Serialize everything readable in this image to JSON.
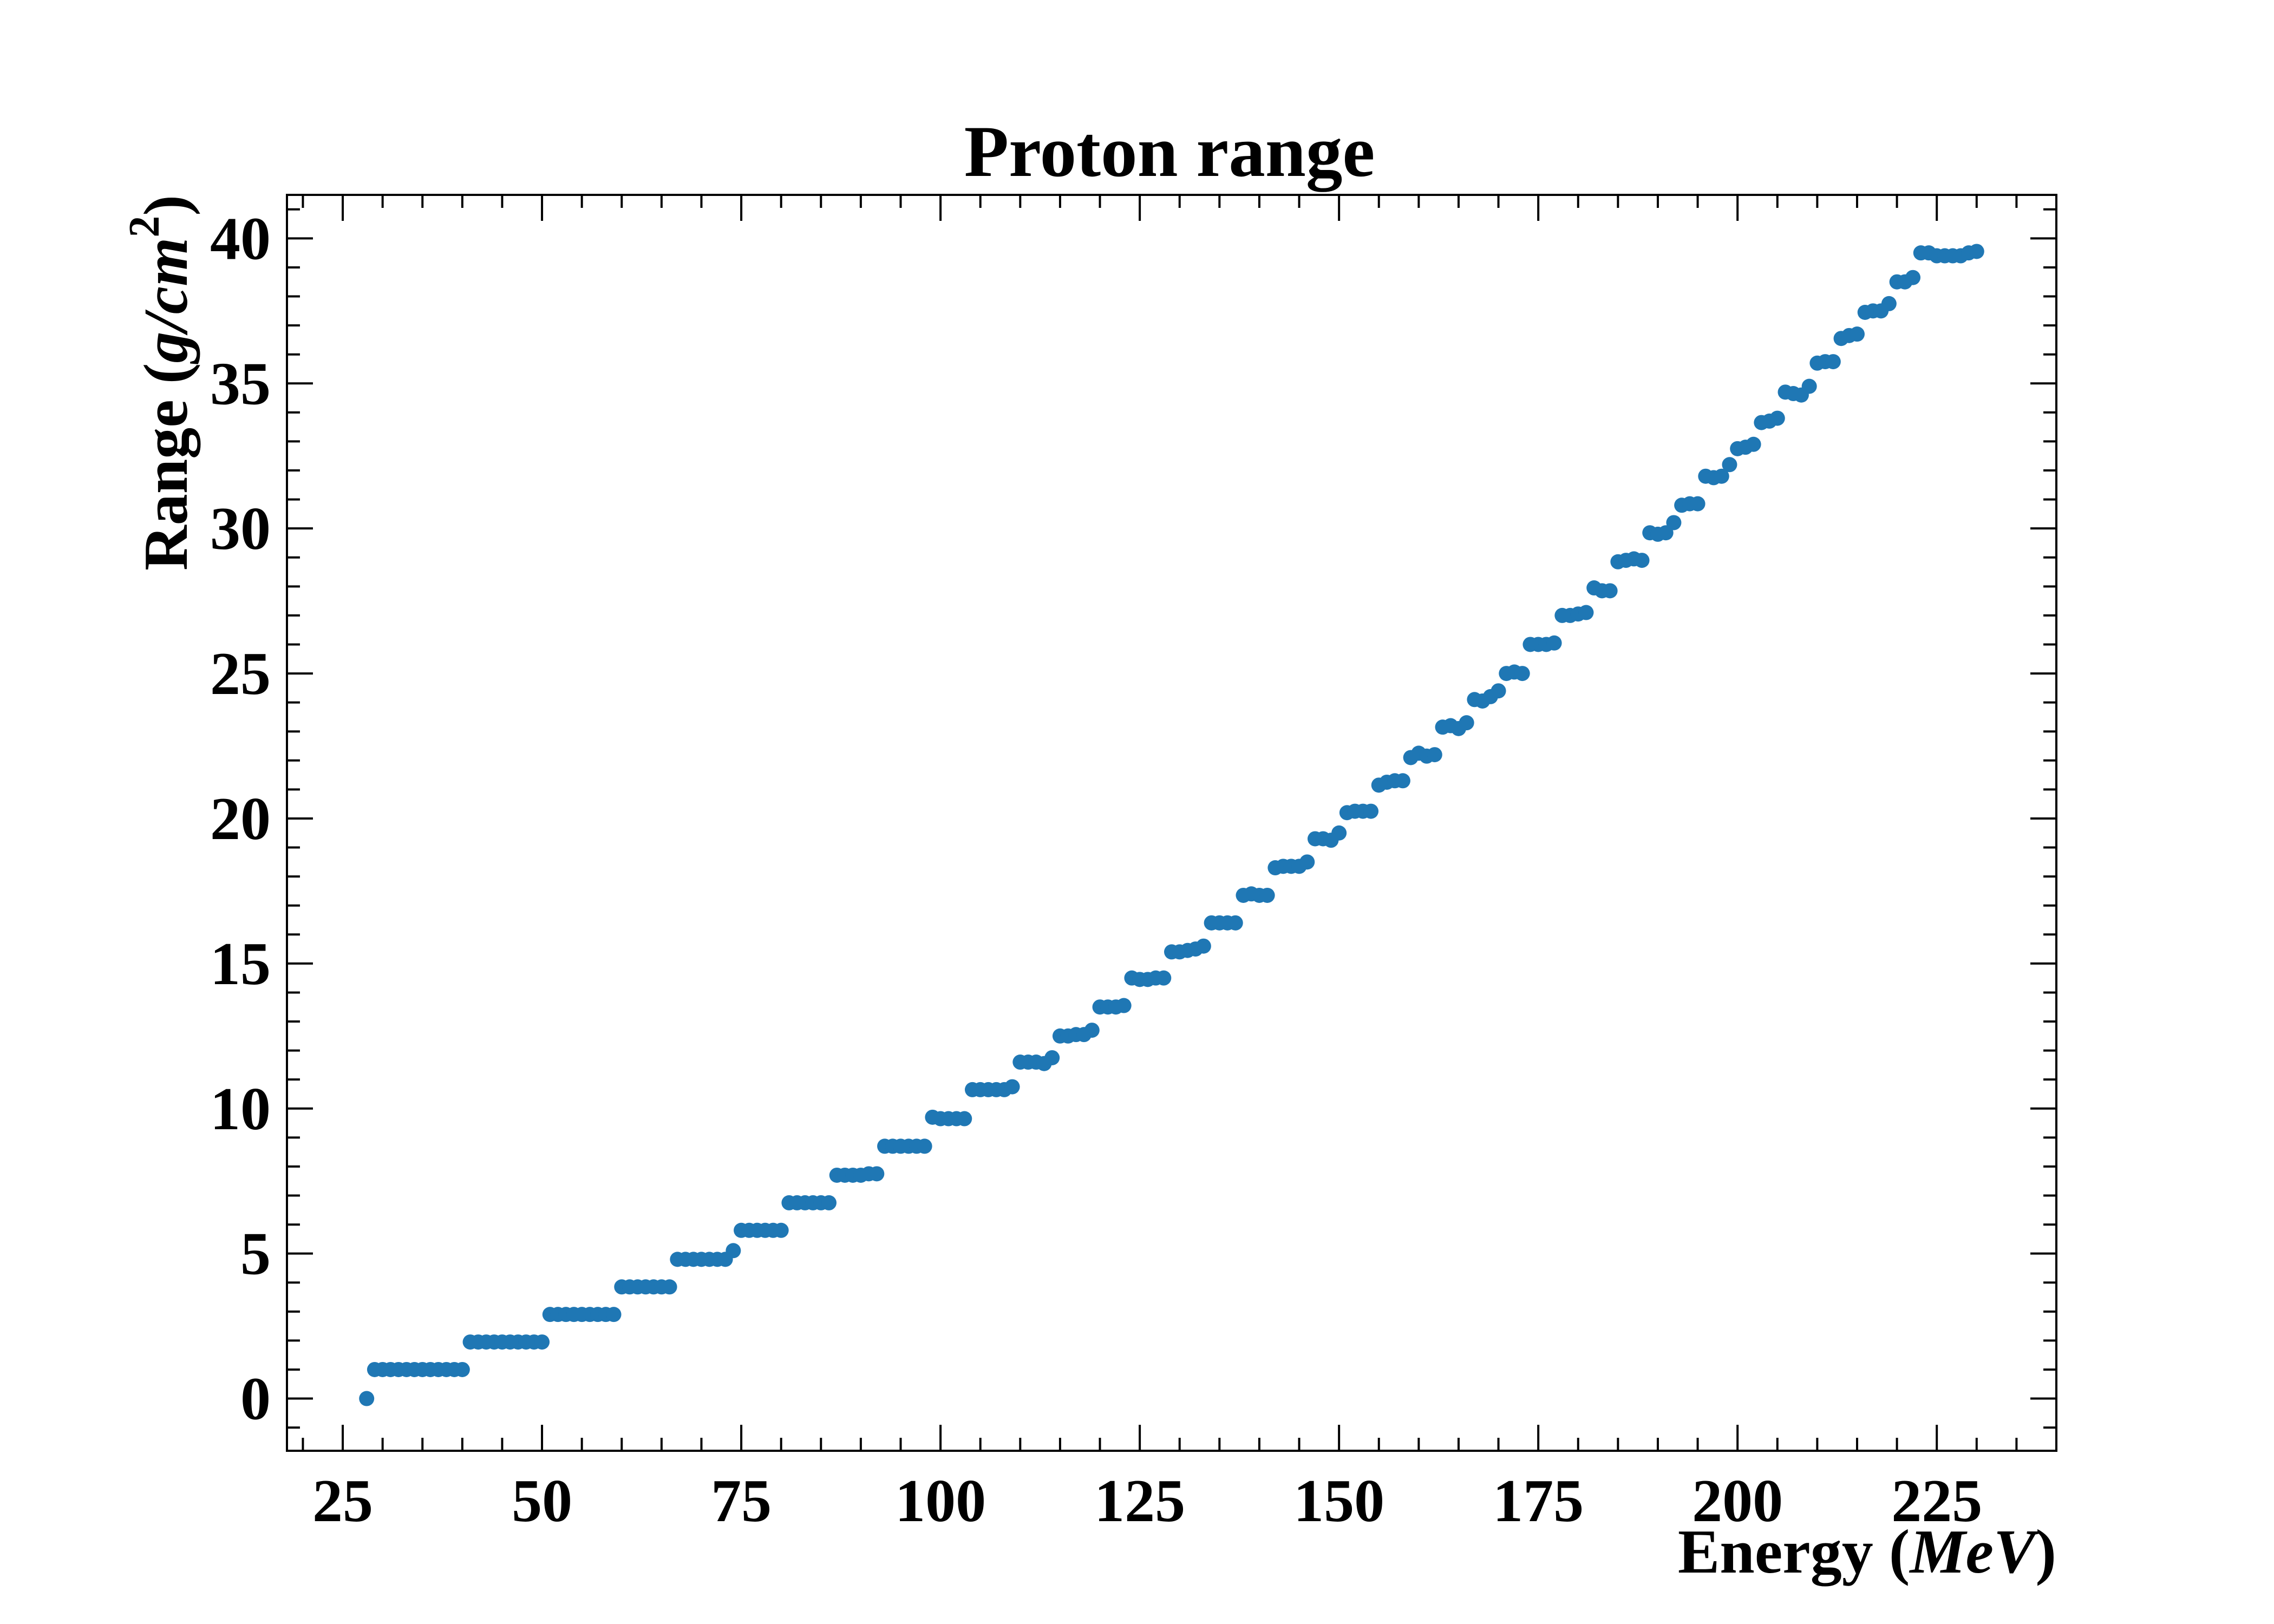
{
  "chart_data": {
    "type": "scatter",
    "title": "Proton range",
    "xlabel": {
      "text": "Energy",
      "unit": "MeV"
    },
    "ylabel": {
      "text": "Range",
      "unit": "g/cm",
      "unit_power": "2"
    },
    "xlim": [
      18,
      240
    ],
    "ylim": [
      -1.8,
      41.5
    ],
    "xticks": [
      25,
      50,
      75,
      100,
      125,
      150,
      175,
      200,
      225
    ],
    "yticks": [
      0,
      5,
      10,
      15,
      20,
      25,
      30,
      35,
      40
    ],
    "x_minor_step": 5,
    "y_minor_step": 1,
    "grid": false,
    "legend": "none",
    "marker_color": "#1f77b4",
    "series": [
      {
        "points": [
          [
            28,
            0.0
          ],
          [
            29,
            1.0
          ],
          [
            30,
            1.0
          ],
          [
            31,
            1.0
          ],
          [
            32,
            1.0
          ],
          [
            33,
            1.0
          ],
          [
            34,
            1.0
          ],
          [
            35,
            1.0
          ],
          [
            36,
            1.0
          ],
          [
            37,
            1.0
          ],
          [
            38,
            1.0
          ],
          [
            39,
            1.0
          ],
          [
            40,
            1.0
          ],
          [
            41,
            1.95
          ],
          [
            42,
            1.95
          ],
          [
            43,
            1.95
          ],
          [
            44,
            1.95
          ],
          [
            45,
            1.95
          ],
          [
            46,
            1.95
          ],
          [
            47,
            1.95
          ],
          [
            48,
            1.95
          ],
          [
            49,
            1.95
          ],
          [
            50,
            1.95
          ],
          [
            51,
            2.9
          ],
          [
            52,
            2.9
          ],
          [
            53,
            2.9
          ],
          [
            54,
            2.9
          ],
          [
            55,
            2.9
          ],
          [
            56,
            2.9
          ],
          [
            57,
            2.9
          ],
          [
            58,
            2.9
          ],
          [
            59,
            2.9
          ],
          [
            60,
            3.85
          ],
          [
            61,
            3.85
          ],
          [
            62,
            3.85
          ],
          [
            63,
            3.85
          ],
          [
            64,
            3.85
          ],
          [
            65,
            3.85
          ],
          [
            66,
            3.85
          ],
          [
            67,
            4.8
          ],
          [
            68,
            4.8
          ],
          [
            69,
            4.8
          ],
          [
            70,
            4.8
          ],
          [
            71,
            4.8
          ],
          [
            72,
            4.8
          ],
          [
            73,
            4.8
          ],
          [
            74,
            5.1
          ],
          [
            75,
            5.8
          ],
          [
            76,
            5.8
          ],
          [
            77,
            5.8
          ],
          [
            78,
            5.8
          ],
          [
            79,
            5.8
          ],
          [
            80,
            5.8
          ],
          [
            81,
            6.75
          ],
          [
            82,
            6.75
          ],
          [
            83,
            6.75
          ],
          [
            84,
            6.75
          ],
          [
            85,
            6.75
          ],
          [
            86,
            6.75
          ],
          [
            87,
            7.7
          ],
          [
            88,
            7.7
          ],
          [
            89,
            7.7
          ],
          [
            90,
            7.7
          ],
          [
            91,
            7.75
          ],
          [
            92,
            7.75
          ],
          [
            93,
            8.7
          ],
          [
            94,
            8.7
          ],
          [
            95,
            8.7
          ],
          [
            96,
            8.7
          ],
          [
            97,
            8.7
          ],
          [
            98,
            8.7
          ],
          [
            99,
            9.7
          ],
          [
            100,
            9.65
          ],
          [
            101,
            9.65
          ],
          [
            102,
            9.65
          ],
          [
            103,
            9.65
          ],
          [
            104,
            10.65
          ],
          [
            105,
            10.65
          ],
          [
            106,
            10.65
          ],
          [
            107,
            10.65
          ],
          [
            108,
            10.65
          ],
          [
            109,
            10.75
          ],
          [
            110,
            11.6
          ],
          [
            111,
            11.6
          ],
          [
            112,
            11.6
          ],
          [
            113,
            11.55
          ],
          [
            114,
            11.75
          ],
          [
            115,
            12.5
          ],
          [
            116,
            12.5
          ],
          [
            117,
            12.55
          ],
          [
            118,
            12.55
          ],
          [
            119,
            12.7
          ],
          [
            120,
            13.5
          ],
          [
            121,
            13.5
          ],
          [
            122,
            13.5
          ],
          [
            123,
            13.55
          ],
          [
            124,
            14.5
          ],
          [
            125,
            14.45
          ],
          [
            126,
            14.45
          ],
          [
            127,
            14.5
          ],
          [
            128,
            14.5
          ],
          [
            129,
            15.4
          ],
          [
            130,
            15.4
          ],
          [
            131,
            15.45
          ],
          [
            132,
            15.5
          ],
          [
            133,
            15.6
          ],
          [
            134,
            16.4
          ],
          [
            135,
            16.4
          ],
          [
            136,
            16.4
          ],
          [
            137,
            16.4
          ],
          [
            138,
            17.35
          ],
          [
            139,
            17.4
          ],
          [
            140,
            17.35
          ],
          [
            141,
            17.35
          ],
          [
            142,
            18.3
          ],
          [
            143,
            18.35
          ],
          [
            144,
            18.35
          ],
          [
            145,
            18.35
          ],
          [
            146,
            18.5
          ],
          [
            147,
            19.3
          ],
          [
            148,
            19.3
          ],
          [
            149,
            19.25
          ],
          [
            150,
            19.5
          ],
          [
            151,
            20.2
          ],
          [
            152,
            20.25
          ],
          [
            153,
            20.25
          ],
          [
            154,
            20.25
          ],
          [
            155,
            21.15
          ],
          [
            156,
            21.25
          ],
          [
            157,
            21.3
          ],
          [
            158,
            21.3
          ],
          [
            159,
            22.1
          ],
          [
            160,
            22.25
          ],
          [
            161,
            22.15
          ],
          [
            162,
            22.2
          ],
          [
            163,
            23.15
          ],
          [
            164,
            23.2
          ],
          [
            165,
            23.1
          ],
          [
            166,
            23.3
          ],
          [
            167,
            24.1
          ],
          [
            168,
            24.05
          ],
          [
            169,
            24.2
          ],
          [
            170,
            24.4
          ],
          [
            171,
            25.0
          ],
          [
            172,
            25.05
          ],
          [
            173,
            25.0
          ],
          [
            174,
            26.0
          ],
          [
            175,
            26.0
          ],
          [
            176,
            26.0
          ],
          [
            177,
            26.05
          ],
          [
            178,
            27.0
          ],
          [
            179,
            27.0
          ],
          [
            180,
            27.05
          ],
          [
            181,
            27.1
          ],
          [
            182,
            27.95
          ],
          [
            183,
            27.85
          ],
          [
            184,
            27.85
          ],
          [
            185,
            28.85
          ],
          [
            186,
            28.9
          ],
          [
            187,
            28.95
          ],
          [
            188,
            28.9
          ],
          [
            189,
            29.85
          ],
          [
            190,
            29.8
          ],
          [
            191,
            29.85
          ],
          [
            192,
            30.2
          ],
          [
            193,
            30.8
          ],
          [
            194,
            30.85
          ],
          [
            195,
            30.85
          ],
          [
            196,
            31.8
          ],
          [
            197,
            31.75
          ],
          [
            198,
            31.8
          ],
          [
            199,
            32.2
          ],
          [
            200,
            32.75
          ],
          [
            201,
            32.8
          ],
          [
            202,
            32.9
          ],
          [
            203,
            33.65
          ],
          [
            204,
            33.7
          ],
          [
            205,
            33.8
          ],
          [
            206,
            34.7
          ],
          [
            207,
            34.65
          ],
          [
            208,
            34.6
          ],
          [
            209,
            34.9
          ],
          [
            210,
            35.7
          ],
          [
            211,
            35.75
          ],
          [
            212,
            35.75
          ],
          [
            213,
            36.55
          ],
          [
            214,
            36.65
          ],
          [
            215,
            36.7
          ],
          [
            216,
            37.45
          ],
          [
            217,
            37.5
          ],
          [
            218,
            37.5
          ],
          [
            219,
            37.75
          ],
          [
            220,
            38.5
          ],
          [
            221,
            38.5
          ],
          [
            222,
            38.65
          ],
          [
            223,
            39.5
          ],
          [
            224,
            39.5
          ],
          [
            225,
            39.4
          ],
          [
            226,
            39.4
          ],
          [
            227,
            39.4
          ],
          [
            228,
            39.4
          ],
          [
            229,
            39.5
          ],
          [
            230,
            39.55
          ]
        ]
      }
    ]
  }
}
